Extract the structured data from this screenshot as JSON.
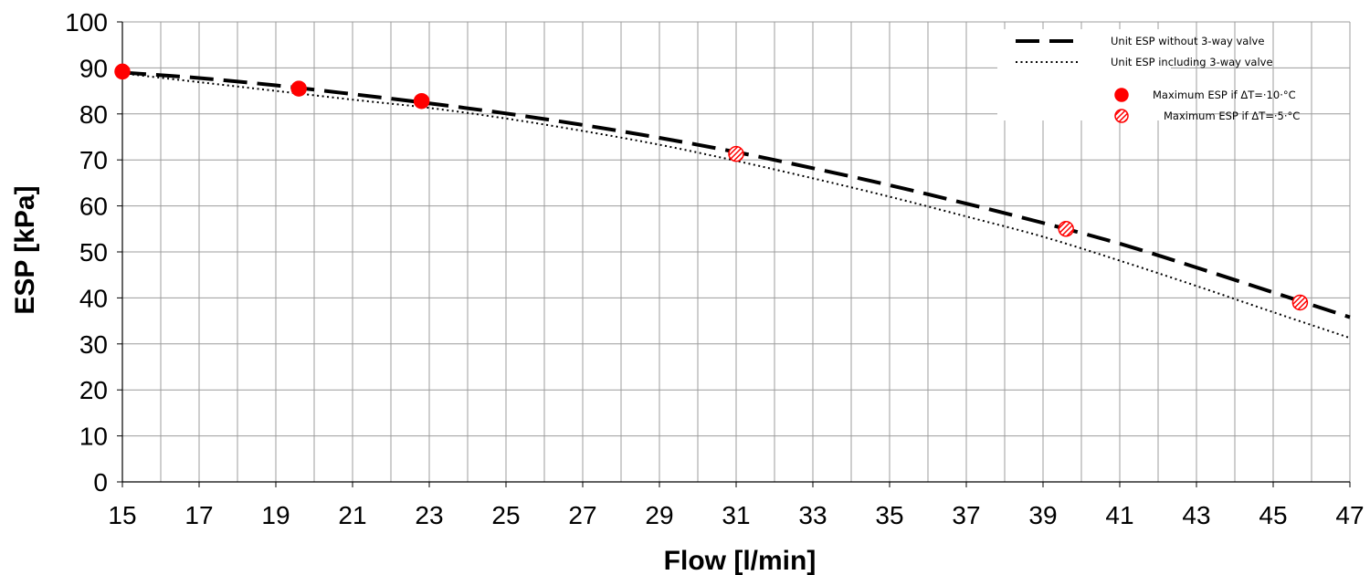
{
  "chart_data": {
    "type": "line",
    "xlabel": "Flow [l/min]",
    "ylabel": "ESP [kPa]",
    "xlim": [
      15,
      47
    ],
    "ylim": [
      0,
      100
    ],
    "x_ticks": [
      15,
      17,
      19,
      21,
      23,
      25,
      27,
      29,
      31,
      33,
      35,
      37,
      39,
      41,
      43,
      45,
      47
    ],
    "y_ticks": [
      0,
      10,
      20,
      30,
      40,
      50,
      60,
      70,
      80,
      90,
      100
    ],
    "grid": true,
    "legend_position": "top-right",
    "series": [
      {
        "name": "Unit ESP without 3-way valve",
        "style": "dashed",
        "color": "#000000",
        "x": [
          15,
          17,
          19,
          21,
          23,
          25,
          27,
          29,
          31,
          33,
          35,
          37,
          39,
          41,
          43,
          45,
          47
        ],
        "y": [
          89,
          87.8,
          86.2,
          84.3,
          82.3,
          80.1,
          77.6,
          74.8,
          71.7,
          68.2,
          64.5,
          60.5,
          56.3,
          51.8,
          46.6,
          41.2,
          35.8
        ]
      },
      {
        "name": "Unit ESP including 3-way valve",
        "style": "dotted",
        "color": "#000000",
        "x": [
          15,
          17,
          19,
          21,
          23,
          25,
          27,
          29,
          31,
          33,
          35,
          37,
          39,
          41,
          43,
          45,
          47
        ],
        "y": [
          88.8,
          86.9,
          85.0,
          83.1,
          81.3,
          79.0,
          76.3,
          73.3,
          69.8,
          66.0,
          62.0,
          57.7,
          53.3,
          48.1,
          42.6,
          36.9,
          31.3
        ]
      }
    ],
    "markers": [
      {
        "name": "Maximum ESP if ΔT=·10·°C",
        "style": "filled",
        "color": "#ff0000",
        "points": [
          {
            "x": 15.0,
            "y": 89.2
          },
          {
            "x": 19.6,
            "y": 85.5
          },
          {
            "x": 22.8,
            "y": 82.8
          }
        ]
      },
      {
        "name": "Maximum ESP if ΔT=·5·°C",
        "style": "hatched",
        "color": "#ff0000",
        "points": [
          {
            "x": 31.0,
            "y": 71.3
          },
          {
            "x": 39.6,
            "y": 55.0
          },
          {
            "x": 45.7,
            "y": 39.0
          }
        ]
      }
    ]
  }
}
